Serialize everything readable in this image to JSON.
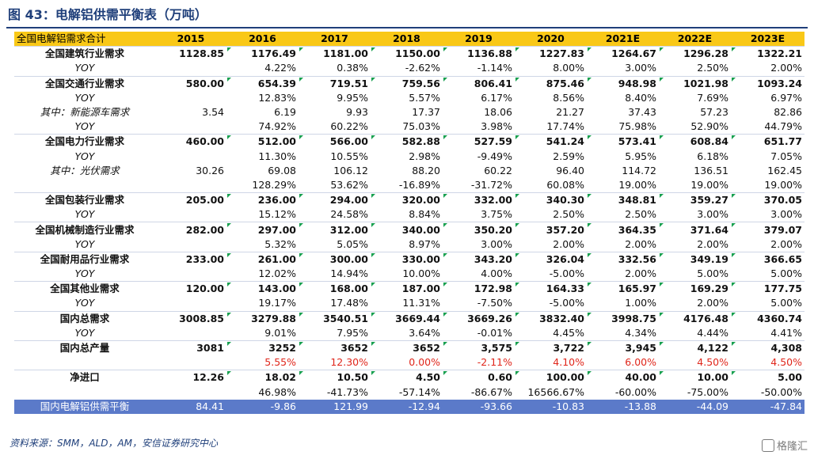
{
  "title": "图 43：电解铝供需平衡表（万吨）",
  "source": "资料来源：SMM，ALD，AM，安信证券研究中心",
  "watermark": "格隆汇",
  "header": [
    "全国电解铝需求合计",
    "2015",
    "2016",
    "2017",
    "2018",
    "2019",
    "2020",
    "2021E",
    "2022E",
    "2023E"
  ],
  "rows": [
    {
      "label": "全国建筑行业需求",
      "type": "main",
      "values": [
        "1128.85",
        "1176.49",
        "1181.00",
        "1150.00",
        "1136.88",
        "1227.83",
        "1264.67",
        "1296.28",
        "1322.21"
      ]
    },
    {
      "label": "YOY",
      "type": "sub",
      "values": [
        "",
        "4.22%",
        "0.38%",
        "-2.62%",
        "-1.14%",
        "8.00%",
        "3.00%",
        "2.50%",
        "2.00%"
      ]
    },
    {
      "label": "全国交通行业需求",
      "type": "main",
      "values": [
        "580.00",
        "654.39",
        "719.51",
        "759.56",
        "806.41",
        "875.46",
        "948.98",
        "1021.98",
        "1093.24"
      ]
    },
    {
      "label": "YOY",
      "type": "sub",
      "values": [
        "",
        "12.83%",
        "9.95%",
        "5.57%",
        "6.17%",
        "8.56%",
        "8.40%",
        "7.69%",
        "6.97%"
      ]
    },
    {
      "label": "其中：新能源车需求",
      "type": "sub",
      "values": [
        "3.54",
        "6.19",
        "9.93",
        "17.37",
        "18.06",
        "21.27",
        "37.43",
        "57.23",
        "82.86"
      ]
    },
    {
      "label": "YOY",
      "type": "sub",
      "values": [
        "",
        "74.92%",
        "60.22%",
        "75.03%",
        "3.98%",
        "17.74%",
        "75.98%",
        "52.90%",
        "44.79%"
      ]
    },
    {
      "label": "全国电力行业需求",
      "type": "main",
      "values": [
        "460.00",
        "512.00",
        "566.00",
        "582.88",
        "527.59",
        "541.24",
        "573.41",
        "608.84",
        "651.77"
      ]
    },
    {
      "label": "YOY",
      "type": "sub",
      "values": [
        "",
        "11.30%",
        "10.55%",
        "2.98%",
        "-9.49%",
        "2.59%",
        "5.95%",
        "6.18%",
        "7.05%"
      ]
    },
    {
      "label": "其中：光伏需求",
      "type": "sub",
      "values": [
        "30.26",
        "69.08",
        "106.12",
        "88.20",
        "60.22",
        "96.40",
        "114.72",
        "136.51",
        "162.45"
      ]
    },
    {
      "label": "",
      "type": "sub",
      "values": [
        "",
        "128.29%",
        "53.62%",
        "-16.89%",
        "-31.72%",
        "60.08%",
        "19.00%",
        "19.00%",
        "19.00%"
      ]
    },
    {
      "label": "全国包装行业需求",
      "type": "main",
      "values": [
        "205.00",
        "236.00",
        "294.00",
        "320.00",
        "332.00",
        "340.30",
        "348.81",
        "359.27",
        "370.05"
      ]
    },
    {
      "label": "YOY",
      "type": "sub",
      "values": [
        "",
        "15.12%",
        "24.58%",
        "8.84%",
        "3.75%",
        "2.50%",
        "2.50%",
        "3.00%",
        "3.00%"
      ]
    },
    {
      "label": "全国机械制造行业需求",
      "type": "main",
      "values": [
        "282.00",
        "297.00",
        "312.00",
        "340.00",
        "350.20",
        "357.20",
        "364.35",
        "371.64",
        "379.07"
      ]
    },
    {
      "label": "YOY",
      "type": "sub",
      "values": [
        "",
        "5.32%",
        "5.05%",
        "8.97%",
        "3.00%",
        "2.00%",
        "2.00%",
        "2.00%",
        "2.00%"
      ]
    },
    {
      "label": "全国耐用品行业需求",
      "type": "main",
      "values": [
        "233.00",
        "261.00",
        "300.00",
        "330.00",
        "343.20",
        "326.04",
        "332.56",
        "349.19",
        "366.65"
      ]
    },
    {
      "label": "YOY",
      "type": "sub",
      "values": [
        "",
        "12.02%",
        "14.94%",
        "10.00%",
        "4.00%",
        "-5.00%",
        "2.00%",
        "5.00%",
        "5.00%"
      ]
    },
    {
      "label": "全国其他业需求",
      "type": "main",
      "values": [
        "120.00",
        "143.00",
        "168.00",
        "187.00",
        "172.98",
        "164.33",
        "165.97",
        "169.29",
        "177.75"
      ]
    },
    {
      "label": "YOY",
      "type": "sub",
      "values": [
        "",
        "19.17%",
        "17.48%",
        "11.31%",
        "-7.50%",
        "-5.00%",
        "1.00%",
        "2.00%",
        "5.00%"
      ]
    },
    {
      "label": "国内总需求",
      "type": "main",
      "values": [
        "3008.85",
        "3279.88",
        "3540.51",
        "3669.44",
        "3669.26",
        "3832.40",
        "3998.75",
        "4176.48",
        "4360.74"
      ]
    },
    {
      "label": "YOY",
      "type": "sub",
      "values": [
        "",
        "9.01%",
        "7.95%",
        "3.64%",
        "-0.01%",
        "4.45%",
        "4.34%",
        "4.44%",
        "4.41%"
      ]
    },
    {
      "label": "国内总产量",
      "type": "main",
      "values": [
        "3081",
        "3252",
        "3652",
        "3652",
        "3,575",
        "3,722",
        "3,945",
        "4,122",
        "4,308"
      ]
    },
    {
      "label": "",
      "type": "red",
      "values": [
        "",
        "5.55%",
        "12.30%",
        "0.00%",
        "-2.11%",
        "4.10%",
        "6.00%",
        "4.50%",
        "4.50%"
      ]
    },
    {
      "label": "净进口",
      "type": "main",
      "values": [
        "12.26",
        "18.02",
        "10.50",
        "4.50",
        "0.60",
        "100.00",
        "40.00",
        "10.00",
        "5.00"
      ]
    },
    {
      "label": "",
      "type": "sub",
      "values": [
        "",
        "46.98%",
        "-41.73%",
        "-57.14%",
        "-86.67%",
        "16566.67%",
        "-60.00%",
        "-75.00%",
        "-50.00%"
      ]
    },
    {
      "label": "国内电解铝供需平衡",
      "type": "foot",
      "values": [
        "84.41",
        "-9.86",
        "121.99",
        "-12.94",
        "-93.66",
        "-10.83",
        "-13.88",
        "-44.09",
        "-47.84"
      ]
    }
  ]
}
